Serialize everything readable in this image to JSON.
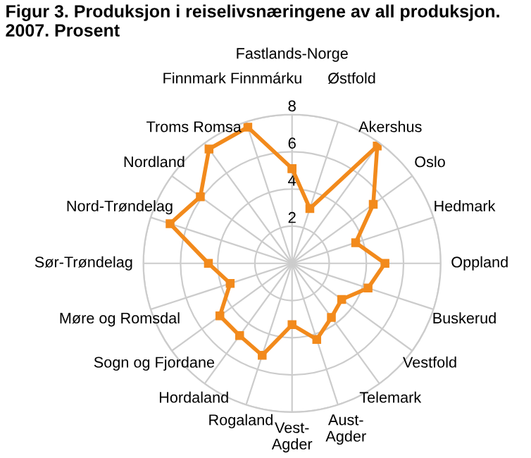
{
  "chart_data": {
    "type": "radar",
    "title": "Figur 3. Produksjon i reiselivsnæringene av all produksjon. 2007. Prosent",
    "categories": [
      "Fastlands-Norge",
      "Østfold",
      "Akershus",
      "Oslo",
      "Hedmark",
      "Oppland",
      "Buskerud",
      "Vestfold",
      "Telemark",
      "Aust-\nAgder",
      "Vest-\nAgder",
      "Rogaland",
      "Hordaland",
      "Sogn og Fjordane",
      "Møre og Romsdal",
      "Sør-Trøndelag",
      "Nord-Trøndelag",
      "Nordland",
      "Troms Romsa",
      "Finnmark Finnmárku"
    ],
    "series": [
      {
        "color": "#f28a1c",
        "values": [
          5.1,
          3.1,
          7.8,
          5.4,
          3.6,
          5.0,
          4.3,
          3.3,
          3.6,
          4.3,
          3.3,
          5.2,
          4.8,
          4.8,
          3.5,
          4.5,
          6.9,
          6.1,
          7.6,
          7.7
        ]
      }
    ],
    "ylim": [
      0,
      8
    ],
    "yticks": [
      2,
      4,
      6,
      8
    ],
    "marker": "square",
    "line_style": "solid",
    "grid": true
  }
}
